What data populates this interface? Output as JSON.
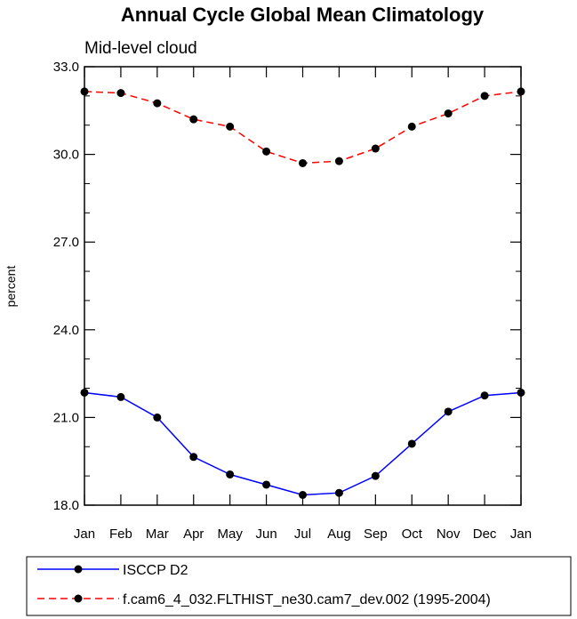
{
  "chart_data": {
    "type": "line",
    "title": "Annual Cycle Global Mean Climatology",
    "subtitle": "Mid-level cloud",
    "xlabel": "",
    "ylabel": "percent",
    "categories": [
      "Jan",
      "Feb",
      "Mar",
      "Apr",
      "May",
      "Jun",
      "Jul",
      "Aug",
      "Sep",
      "Oct",
      "Nov",
      "Dec",
      "Jan"
    ],
    "ylim": [
      18.0,
      33.0
    ],
    "yticks": [
      "18.0",
      "21.0",
      "24.0",
      "27.0",
      "30.0",
      "33.0"
    ],
    "ytick_values": [
      18,
      21,
      24,
      27,
      30,
      33
    ],
    "legend_position": "bottom",
    "series": [
      {
        "name": "ISCCP D2",
        "color": "#0000ff",
        "dash": "solid",
        "values": [
          21.85,
          21.7,
          21.0,
          19.65,
          19.05,
          18.7,
          18.35,
          18.42,
          19.0,
          20.1,
          21.2,
          21.75,
          21.85
        ]
      },
      {
        "name": "f.cam6_4_032.FLTHIST_ne30.cam7_dev.002 (1995-2004)",
        "color": "#ff0000",
        "dash": "dashed",
        "values": [
          32.15,
          32.1,
          31.75,
          31.2,
          30.95,
          30.1,
          29.7,
          29.77,
          30.2,
          30.95,
          31.4,
          32.0,
          32.15
        ]
      }
    ]
  }
}
